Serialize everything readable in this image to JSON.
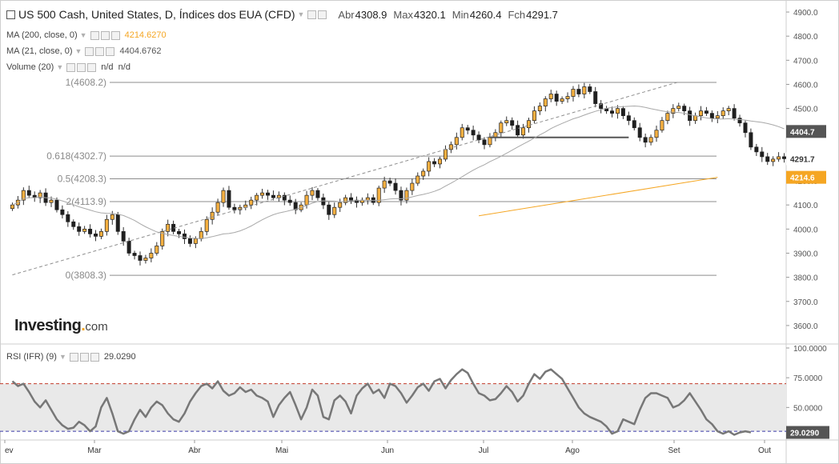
{
  "header": {
    "title": "US 500 Cash, United States, D, Índices dos EUA (CFD)",
    "open_label": "Abr",
    "open_value": "4308.9",
    "max_label": "Max",
    "max_value": "4320.1",
    "min_label": "Min",
    "min_value": "4260.4",
    "close_label": "Fch",
    "close_value": "4291.7"
  },
  "indicators": {
    "ma200": {
      "label": "MA (200, close, 0)",
      "value": "4214.6270",
      "color": "#f5a623"
    },
    "ma21": {
      "label": "MA (21, close, 0)",
      "value": "4404.6762",
      "color": "#9a9a9a"
    },
    "volume": {
      "label": "Volume (20)",
      "value1": "n/d",
      "value2": "n/d"
    },
    "rsi": {
      "label": "RSI (IFR) (9)",
      "value": "29.0290"
    }
  },
  "logo": {
    "main": "Investing",
    "suffix": "com"
  },
  "chart_data": [
    {
      "type": "candlestick",
      "name": "US 500 Cash",
      "y_ticks": [
        "4900.0",
        "4800.0",
        "4700.0",
        "4600.0",
        "4500.0",
        "4400.0",
        "4300.0",
        "4200.0",
        "4100.0",
        "4000.0",
        "3900.0",
        "3800.0",
        "3700.0",
        "3600.0"
      ],
      "ylim": [
        3530,
        4930
      ],
      "x_ticks": [
        "ev",
        "Mar",
        "Abr",
        "Mai",
        "Jun",
        "Jul",
        "Ago",
        "Set",
        "Out"
      ],
      "price_labels": {
        "ma21": "4404.7",
        "last": "4291.7",
        "ma200": "4214.6"
      },
      "fibonacci": [
        {
          "label": "1(4608.2)",
          "value": 4608.2
        },
        {
          "label": "0.618(4302.7)",
          "value": 4302.7
        },
        {
          "label": "0.5(4208.3)",
          "value": 4208.3
        },
        {
          "label": "2(4113.9)",
          "value": 4113.9
        },
        {
          "label": "0(3808.3)",
          "value": 3808.3
        }
      ],
      "horizontal_level": 4380,
      "trendline": [
        [
          0,
          3810
        ],
        [
          120,
          4610
        ]
      ],
      "ma200": [
        [
          84,
          4055
        ],
        [
          127,
          4214.6
        ]
      ],
      "closes": [
        4100,
        4120,
        4160,
        4140,
        4130,
        4150,
        4110,
        4120,
        4080,
        4060,
        4030,
        4010,
        3990,
        4000,
        3980,
        3970,
        3990,
        4040,
        4060,
        3990,
        3950,
        3900,
        3890,
        3870,
        3880,
        3900,
        3930,
        3990,
        4020,
        3990,
        3980,
        3960,
        3940,
        3960,
        3990,
        4040,
        4070,
        4110,
        4160,
        4090,
        4080,
        4090,
        4100,
        4120,
        4140,
        4150,
        4140,
        4130,
        4140,
        4120,
        4110,
        4080,
        4100,
        4140,
        4160,
        4130,
        4100,
        4060,
        4090,
        4110,
        4130,
        4120,
        4110,
        4120,
        4130,
        4110,
        4170,
        4200,
        4190,
        4160,
        4120,
        4160,
        4190,
        4220,
        4240,
        4280,
        4270,
        4290,
        4330,
        4350,
        4380,
        4420,
        4410,
        4390,
        4370,
        4350,
        4380,
        4400,
        4440,
        4450,
        4430,
        4390,
        4420,
        4450,
        4490,
        4510,
        4540,
        4560,
        4530,
        4540,
        4550,
        4580,
        4560,
        4590,
        4570,
        4520,
        4500,
        4490,
        4480,
        4500,
        4470,
        4450,
        4420,
        4380,
        4360,
        4380,
        4410,
        4450,
        4480,
        4500,
        4510,
        4490,
        4450,
        4470,
        4490,
        4480,
        4460,
        4470,
        4490,
        4500,
        4460,
        4440,
        4400,
        4340,
        4320,
        4300,
        4280,
        4290,
        4300,
        4291.7
      ]
    },
    {
      "type": "line",
      "name": "RSI (IFR) (9)",
      "y_ticks": [
        "100.0000",
        "75.0000",
        "50.0000"
      ],
      "ylim": [
        24,
        102
      ],
      "levels": [
        70,
        30
      ],
      "last_label": "29.0290",
      "values": [
        72,
        68,
        70,
        63,
        55,
        50,
        56,
        48,
        40,
        35,
        32,
        33,
        38,
        35,
        30,
        34,
        50,
        58,
        45,
        30,
        28,
        30,
        40,
        48,
        42,
        50,
        55,
        52,
        45,
        40,
        38,
        45,
        55,
        62,
        68,
        70,
        66,
        72,
        64,
        60,
        62,
        67,
        63,
        65,
        60,
        58,
        55,
        42,
        52,
        58,
        63,
        52,
        40,
        50,
        65,
        60,
        42,
        40,
        56,
        60,
        55,
        45,
        60,
        66,
        70,
        62,
        65,
        58,
        70,
        68,
        62,
        54,
        60,
        67,
        70,
        64,
        72,
        74,
        66,
        73,
        78,
        82,
        79,
        70,
        62,
        60,
        56,
        57,
        62,
        68,
        63,
        55,
        60,
        70,
        78,
        74,
        80,
        82,
        78,
        74,
        66,
        58,
        50,
        45,
        42,
        40,
        38,
        34,
        28,
        30,
        40,
        38,
        36,
        48,
        58,
        62,
        62,
        60,
        58,
        50,
        52,
        56,
        62,
        55,
        48,
        40,
        36,
        30,
        28,
        30,
        27,
        29,
        30,
        29.029
      ]
    }
  ]
}
